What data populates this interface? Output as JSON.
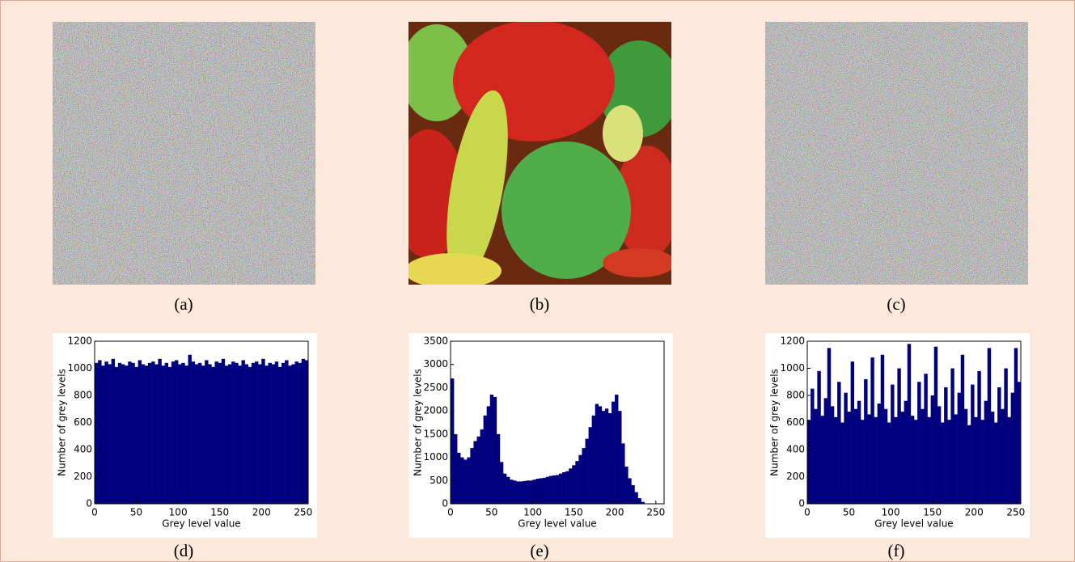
{
  "captions": [
    "(a)",
    "(b)",
    "(c)",
    "(d)",
    "(e)",
    "(f)"
  ],
  "chart_data": [
    {
      "type": "histogram",
      "xlabel": "Grey level value",
      "ylabel": "Number of grey levels",
      "color": "#00007f",
      "bins": [
        0,
        4,
        8,
        12,
        16,
        20,
        24,
        28,
        32,
        36,
        40,
        44,
        48,
        52,
        56,
        60,
        64,
        68,
        72,
        76,
        80,
        84,
        88,
        92,
        96,
        100,
        104,
        108,
        112,
        116,
        120,
        124,
        128,
        132,
        136,
        140,
        144,
        148,
        152,
        156,
        160,
        164,
        168,
        172,
        176,
        180,
        184,
        188,
        192,
        196,
        200,
        204,
        208,
        212,
        216,
        220,
        224,
        228,
        232,
        236,
        240,
        244,
        248,
        252,
        256
      ],
      "values": [
        1040,
        1060,
        1020,
        1050,
        1030,
        1070,
        1010,
        1040,
        1030,
        1020,
        1050,
        1040,
        1010,
        1060,
        1030,
        1020,
        1040,
        1050,
        1030,
        1070,
        1020,
        1040,
        1010,
        1050,
        1060,
        1030,
        1040,
        1020,
        1100,
        1050,
        1030,
        1040,
        1020,
        1060,
        1030,
        1010,
        1050,
        1040,
        1070,
        1020,
        1030,
        1050,
        1040,
        1020,
        1060,
        1030,
        1010,
        1040,
        1050,
        1030,
        1070,
        1020,
        1040,
        1030,
        1050,
        1010,
        1040,
        1060,
        1020,
        1030,
        1050,
        1040,
        1070,
        1060
      ],
      "xlim": [
        0,
        256
      ],
      "ylim": [
        0,
        1200
      ],
      "xticks": [
        0,
        50,
        100,
        150,
        200,
        250
      ],
      "yticks": [
        0,
        200,
        400,
        600,
        800,
        1000,
        1200
      ]
    },
    {
      "type": "histogram",
      "xlabel": "Grey level value",
      "ylabel": "Number of grey levels",
      "color": "#00007f",
      "bins": [
        0,
        4,
        8,
        12,
        16,
        20,
        24,
        28,
        32,
        36,
        40,
        44,
        48,
        52,
        56,
        60,
        64,
        68,
        72,
        76,
        80,
        84,
        88,
        92,
        96,
        100,
        104,
        108,
        112,
        116,
        120,
        124,
        128,
        132,
        136,
        140,
        144,
        148,
        152,
        156,
        160,
        164,
        168,
        172,
        176,
        180,
        184,
        188,
        192,
        196,
        200,
        204,
        208,
        212,
        216,
        220,
        224,
        228,
        232,
        236,
        240,
        244,
        248,
        252,
        256
      ],
      "values": [
        2700,
        1500,
        1100,
        1000,
        950,
        1000,
        1200,
        1350,
        1450,
        1600,
        1900,
        2100,
        2350,
        2300,
        1500,
        900,
        650,
        580,
        520,
        500,
        480,
        480,
        490,
        500,
        500,
        520,
        540,
        550,
        560,
        580,
        600,
        610,
        620,
        650,
        680,
        700,
        760,
        830,
        920,
        1050,
        1200,
        1400,
        1650,
        1900,
        2150,
        2100,
        2000,
        2050,
        1950,
        2200,
        2350,
        2000,
        1300,
        800,
        550,
        400,
        250,
        120,
        40,
        0,
        0,
        0,
        0,
        0
      ],
      "xlim": [
        0,
        260
      ],
      "ylim": [
        0,
        3500
      ],
      "xticks": [
        0,
        50,
        100,
        150,
        200,
        250
      ],
      "yticks": [
        0,
        500,
        1000,
        1500,
        2000,
        2500,
        3000,
        3500
      ]
    },
    {
      "type": "histogram",
      "xlabel": "Grey level value",
      "ylabel": "Number of grey levels",
      "color": "#00007f",
      "bins": [
        0,
        4,
        8,
        12,
        16,
        20,
        24,
        28,
        32,
        36,
        40,
        44,
        48,
        52,
        56,
        60,
        64,
        68,
        72,
        76,
        80,
        84,
        88,
        92,
        96,
        100,
        104,
        108,
        112,
        116,
        120,
        124,
        128,
        132,
        136,
        140,
        144,
        148,
        152,
        156,
        160,
        164,
        168,
        172,
        176,
        180,
        184,
        188,
        192,
        196,
        200,
        204,
        208,
        212,
        216,
        220,
        224,
        228,
        232,
        236,
        240,
        244,
        248,
        252,
        256
      ],
      "values": [
        620,
        850,
        700,
        980,
        650,
        780,
        1150,
        720,
        640,
        900,
        600,
        820,
        680,
        1050,
        700,
        760,
        620,
        920,
        660,
        1080,
        640,
        740,
        1100,
        700,
        600,
        880,
        640,
        1000,
        680,
        760,
        1180,
        650,
        620,
        900,
        700,
        960,
        640,
        800,
        1160,
        720,
        600,
        860,
        620,
        1000,
        660,
        820,
        1100,
        700,
        580,
        880,
        640,
        980,
        620,
        760,
        1150,
        680,
        600,
        860,
        700,
        1000,
        640,
        820,
        1150,
        900
      ],
      "xlim": [
        0,
        256
      ],
      "ylim": [
        0,
        1200
      ],
      "xticks": [
        0,
        50,
        100,
        150,
        200,
        250
      ],
      "yticks": [
        0,
        200,
        400,
        600,
        800,
        1000,
        1200
      ]
    }
  ]
}
